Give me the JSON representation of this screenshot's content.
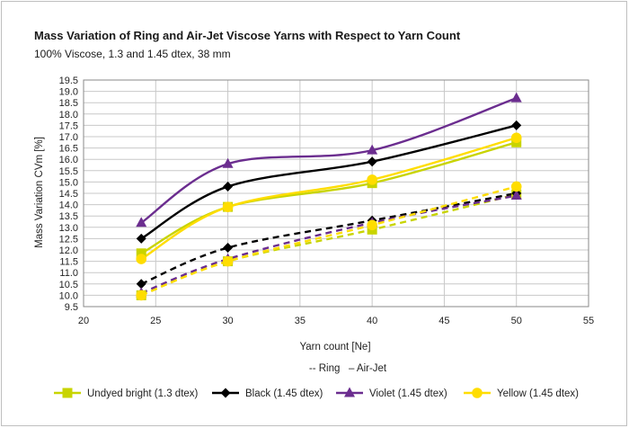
{
  "chart_data": {
    "type": "line",
    "title": "Mass Variation of Ring and Air-Jet Viscose Yarns with Respect to Yarn Count",
    "subtitle": "100% Viscose, 1.3 and 1.45 dtex, 38 mm",
    "xlabel": "Yarn count [Ne]",
    "ylabel": "Mass Variation CVm [%]",
    "line_style_note": "-- Ring   – Air-Jet",
    "xlim": [
      20,
      55
    ],
    "ylim": [
      9.5,
      19.5
    ],
    "x_ticks": [
      20,
      25,
      30,
      35,
      40,
      45,
      50,
      55
    ],
    "y_ticks": [
      9.5,
      10.0,
      10.5,
      11.0,
      11.5,
      12.0,
      12.5,
      13.0,
      13.5,
      14.0,
      14.5,
      15.0,
      15.5,
      16.0,
      16.5,
      17.0,
      17.5,
      18.0,
      18.5,
      19.0,
      19.5
    ],
    "grid": true,
    "legend_position": "bottom",
    "x": [
      24,
      30,
      40,
      50
    ],
    "series": [
      {
        "name": "Undyed bright (1.3 dtex)",
        "process": "Air-Jet",
        "color": "#c8d400",
        "marker": "square",
        "dashed": false,
        "values": [
          11.85,
          13.9,
          14.95,
          16.75
        ]
      },
      {
        "name": "Undyed bright (1.3 dtex)",
        "process": "Ring",
        "color": "#c8d400",
        "marker": "square",
        "dashed": true,
        "values": [
          10.0,
          11.5,
          12.9,
          14.45
        ]
      },
      {
        "name": "Black (1.45 dtex)",
        "process": "Air-Jet",
        "color": "#000000",
        "marker": "diamond",
        "dashed": false,
        "values": [
          12.5,
          14.8,
          15.9,
          17.5
        ]
      },
      {
        "name": "Black (1.45 dtex)",
        "process": "Ring",
        "color": "#000000",
        "marker": "diamond",
        "dashed": true,
        "values": [
          10.5,
          12.1,
          13.3,
          14.5
        ]
      },
      {
        "name": "Violet (1.45 dtex)",
        "process": "Air-Jet",
        "color": "#6b2d8f",
        "marker": "triangle",
        "dashed": false,
        "values": [
          13.2,
          15.8,
          16.4,
          18.7
        ]
      },
      {
        "name": "Violet (1.45 dtex)",
        "process": "Ring",
        "color": "#6b2d8f",
        "marker": "triangle",
        "dashed": true,
        "values": [
          10.1,
          11.6,
          13.2,
          14.4
        ]
      },
      {
        "name": "Yellow (1.45 dtex)",
        "process": "Air-Jet",
        "color": "#ffdd00",
        "marker": "circle",
        "dashed": false,
        "values": [
          11.6,
          13.9,
          15.1,
          16.95
        ]
      },
      {
        "name": "Yellow (1.45 dtex)",
        "process": "Ring",
        "color": "#ffdd00",
        "marker": "circle",
        "dashed": true,
        "values": [
          10.0,
          11.5,
          13.1,
          14.8
        ]
      }
    ],
    "legend": [
      {
        "label": "Undyed bright (1.3 dtex)",
        "color": "#c8d400",
        "marker": "square"
      },
      {
        "label": "Black (1.45 dtex)",
        "color": "#000000",
        "marker": "diamond"
      },
      {
        "label": "Violet  (1.45 dtex)",
        "color": "#6b2d8f",
        "marker": "triangle"
      },
      {
        "label": "Yellow (1.45 dtex)",
        "color": "#ffdd00",
        "marker": "circle"
      }
    ]
  }
}
